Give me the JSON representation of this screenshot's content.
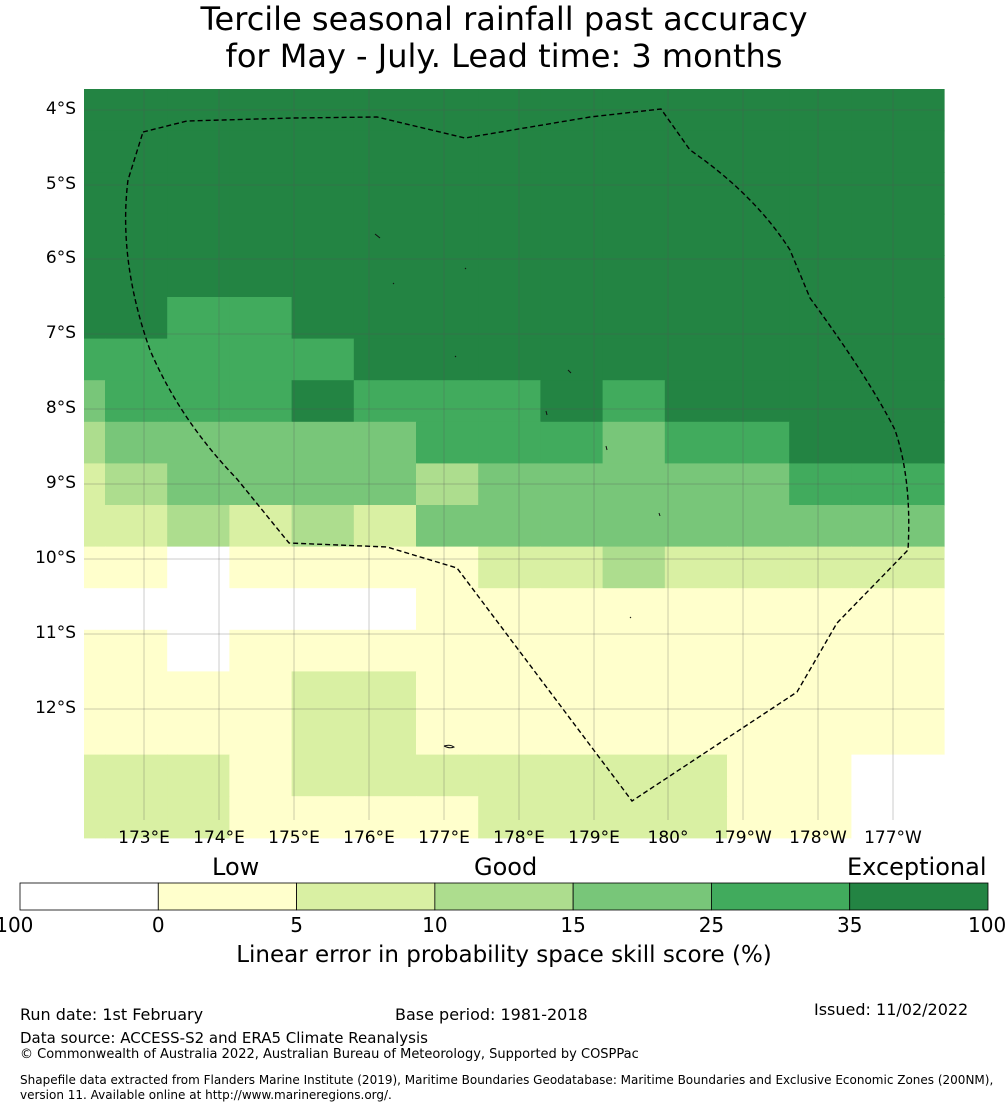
{
  "title_line1": "Tercile seasonal rainfall past accuracy",
  "title_line2": "for May - July. Lead time: 3 months",
  "lat_labels": [
    "4°S",
    "5°S",
    "6°S",
    "7°S",
    "8°S",
    "9°S",
    "10°S",
    "11°S",
    "12°S"
  ],
  "lon_labels": [
    "173°E",
    "174°E",
    "175°E",
    "176°E",
    "177°E",
    "178°E",
    "179°E",
    "180°",
    "179°W",
    "178°W",
    "177°W"
  ],
  "legend": {
    "categories": [
      "Low",
      "Good",
      "Exceptional"
    ],
    "ticks": [
      "-100",
      "0",
      "5",
      "10",
      "15",
      "25",
      "35",
      "100"
    ],
    "colors": [
      "#ffffff",
      "#ffffcc",
      "#d9f0a3",
      "#addd8e",
      "#78c679",
      "#41ab5d",
      "#238443"
    ],
    "label": "Linear error in probability space skill score (%)"
  },
  "grid": {
    "rows": [
      [
        6,
        6,
        6,
        6,
        6,
        6,
        6,
        6,
        6,
        6,
        6,
        6,
        6,
        6
      ],
      [
        6,
        6,
        6,
        6,
        6,
        6,
        6,
        6,
        6,
        6,
        6,
        6,
        6,
        6
      ],
      [
        6,
        6,
        6,
        6,
        6,
        6,
        6,
        6,
        6,
        6,
        6,
        6,
        6,
        6
      ],
      [
        6,
        6,
        6,
        6,
        6,
        6,
        6,
        6,
        6,
        6,
        6,
        6,
        6,
        6
      ],
      [
        6,
        6,
        6,
        6,
        6,
        6,
        6,
        6,
        6,
        6,
        6,
        6,
        6,
        6
      ],
      [
        6,
        6,
        5,
        5,
        6,
        6,
        6,
        6,
        6,
        6,
        6,
        6,
        6,
        6
      ],
      [
        5,
        5,
        5,
        5,
        5,
        6,
        6,
        6,
        6,
        6,
        6,
        6,
        6,
        6
      ],
      [
        4,
        5,
        5,
        5,
        6,
        5,
        5,
        5,
        6,
        5,
        6,
        6,
        6,
        6
      ],
      [
        3,
        4,
        4,
        4,
        4,
        4,
        5,
        5,
        5,
        4,
        5,
        5,
        6,
        6
      ],
      [
        2,
        3,
        4,
        4,
        4,
        4,
        3,
        4,
        4,
        4,
        4,
        4,
        5,
        5
      ],
      [
        2,
        2,
        3,
        2,
        3,
        2,
        4,
        4,
        4,
        4,
        4,
        4,
        4,
        4
      ],
      [
        1,
        1,
        0,
        1,
        1,
        1,
        1,
        2,
        2,
        3,
        2,
        2,
        2,
        2
      ],
      [
        0,
        0,
        0,
        0,
        0,
        0,
        1,
        1,
        1,
        1,
        1,
        1,
        1,
        1
      ],
      [
        1,
        1,
        0,
        1,
        1,
        1,
        1,
        1,
        1,
        1,
        1,
        1,
        1,
        1
      ],
      [
        1,
        1,
        1,
        1,
        2,
        2,
        1,
        1,
        1,
        1,
        1,
        1,
        1,
        1
      ],
      [
        1,
        1,
        1,
        1,
        2,
        2,
        1,
        1,
        1,
        1,
        1,
        1,
        1,
        1
      ],
      [
        2,
        2,
        2,
        1,
        2,
        2,
        2,
        2,
        2,
        2,
        2,
        1,
        1,
        0
      ],
      [
        2,
        2,
        2,
        1,
        1,
        1,
        1,
        2,
        2,
        2,
        2,
        1,
        1,
        0
      ]
    ],
    "col_count": 14
  },
  "footer": {
    "run_date": "Run date: 1st February",
    "base_period": "Base period: 1981-2018",
    "issued": "Issued: 11/02/2022",
    "data_source": "Data source: ACCESS-S2 and ERA5 Climate Reanalysis",
    "copyright": "© Commonwealth of Australia 2022, Australian Bureau of Meteorology, Supported by COSPPac",
    "shapefile_line1": "Shapefile data extracted from Flanders Marine Institute (2019), Maritime Boundaries Geodatabase: Maritime Boundaries and Exclusive Economic Zones (200NM),",
    "shapefile_line2": "version 11. Available online at http://www.marineregions.org/."
  }
}
